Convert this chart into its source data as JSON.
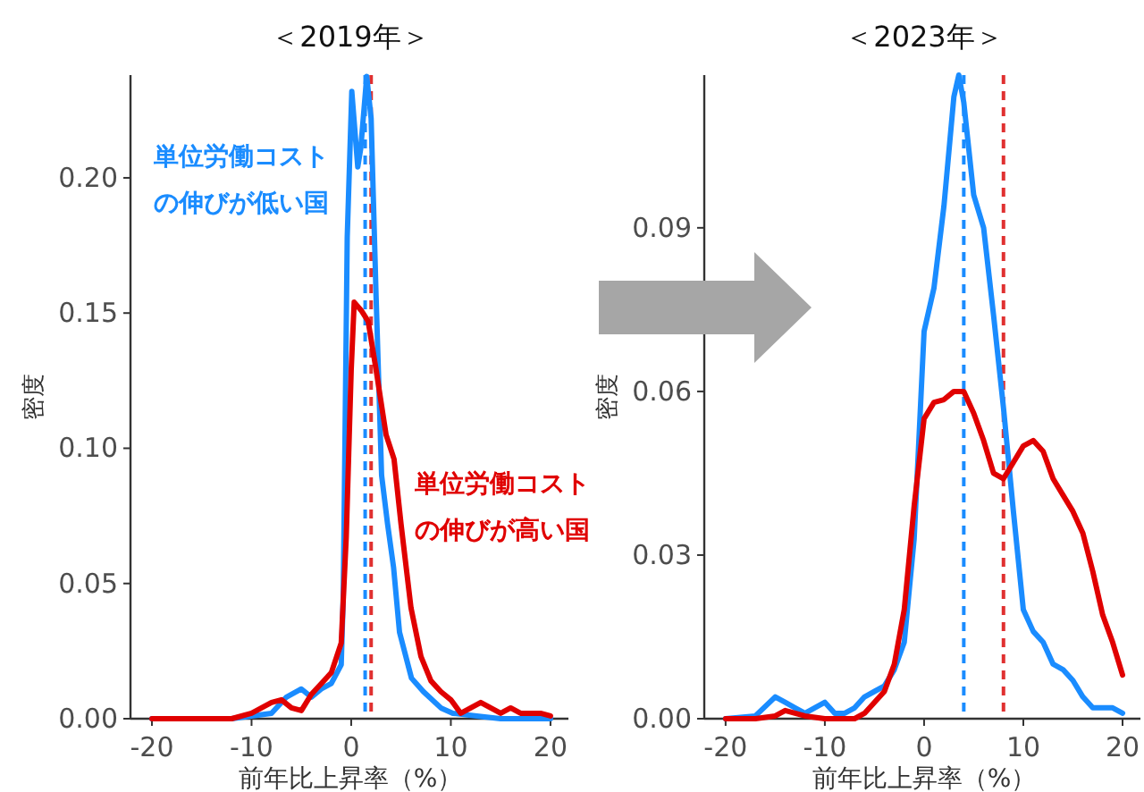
{
  "chart_data": [
    {
      "type": "line",
      "title": "＜2019年＞",
      "xlabel": "前年比上昇率（%）",
      "ylabel": "密度",
      "xlim": [
        -22.15,
        21.8
      ],
      "ylim": [
        0,
        0.238
      ],
      "xticks": [
        -20,
        -10,
        0,
        10,
        20
      ],
      "yticks": [
        {
          "value": 0,
          "label": "0.00"
        },
        {
          "value": 0.05,
          "label": "0.05"
        },
        {
          "value": 0.1,
          "label": "0.10"
        },
        {
          "value": 0.15,
          "label": "0.15"
        },
        {
          "value": 0.2,
          "label": "0.20"
        }
      ],
      "grid": false,
      "series": [
        {
          "name": "単位労働コストの伸びが低い国",
          "color": "#1a8cff",
          "x": [
            -20,
            -15,
            -12,
            -10,
            -8,
            -6.5,
            -5,
            -4,
            -3,
            -2,
            -1,
            -0.8,
            -0.4,
            0.06,
            0.66,
            0.96,
            1.56,
            2.0,
            2.5,
            3.05,
            3.65,
            4.25,
            4.85,
            6.05,
            7.25,
            9.0,
            10.2,
            12.6,
            15,
            20
          ],
          "values": [
            0,
            0,
            0,
            0.001,
            0.002,
            0.008,
            0.011,
            0.008,
            0.011,
            0.013,
            0.02,
            0.045,
            0.178,
            0.232,
            0.204,
            0.211,
            0.2375,
            0.222,
            0.156,
            0.09,
            0.072,
            0.056,
            0.032,
            0.015,
            0.01,
            0.004,
            0.002,
            0.001,
            0,
            0
          ]
        },
        {
          "name": "単位労働コストの伸びが高い国",
          "color": "#e00000",
          "x": [
            -20,
            -15,
            -12,
            -10,
            -9,
            -8,
            -7,
            -6,
            -5,
            -4,
            -3,
            -2,
            -1,
            -0.5,
            0,
            0.3,
            1,
            1.7,
            2.5,
            3.5,
            4.3,
            5,
            6,
            7,
            8,
            9,
            10,
            11,
            12,
            13,
            14,
            15,
            16,
            17,
            18,
            19,
            20
          ],
          "values": [
            0,
            0,
            0,
            0.002,
            0.004,
            0.006,
            0.007,
            0.004,
            0.003,
            0.009,
            0.013,
            0.017,
            0.028,
            0.067,
            0.129,
            0.154,
            0.151,
            0.147,
            0.129,
            0.105,
            0.096,
            0.072,
            0.041,
            0.023,
            0.014,
            0.01,
            0.007,
            0.002,
            0.004,
            0.006,
            0.004,
            0.002,
            0.004,
            0.002,
            0.002,
            0.002,
            0.001
          ]
        }
      ],
      "ref_lines": [
        {
          "axis": "x",
          "value": 1.4,
          "color": "#1a8cff",
          "line_style": "dashed"
        },
        {
          "axis": "x",
          "value": 2.0,
          "color": "#e03030",
          "line_style": "dashed"
        }
      ]
    },
    {
      "type": "line",
      "title": "＜2023年＞",
      "xlabel": "前年比上昇率（%）",
      "ylabel": "密度",
      "xlim": [
        -22.15,
        21.8
      ],
      "ylim": [
        0,
        0.118
      ],
      "xticks": [
        -20,
        -10,
        0,
        10,
        20
      ],
      "yticks": [
        {
          "value": 0,
          "label": "0.00"
        },
        {
          "value": 0.03,
          "label": "0.03"
        },
        {
          "value": 0.06,
          "label": "0.06"
        },
        {
          "value": 0.09,
          "label": "0.09"
        }
      ],
      "grid": false,
      "series": [
        {
          "color": "#1a8cff",
          "x": [
            -20,
            -17,
            -15,
            -14,
            -13,
            -12,
            -10,
            -9,
            -8,
            -7,
            -6,
            -5,
            -4,
            -3,
            -2,
            -1,
            0,
            1,
            2,
            3,
            3.5,
            4,
            5,
            6,
            7,
            8,
            9,
            10,
            11,
            12,
            13,
            14,
            15,
            16,
            17,
            18,
            19,
            20
          ],
          "values": [
            0,
            0.0005,
            0.004,
            0.003,
            0.002,
            0.001,
            0.003,
            0.001,
            0.001,
            0.002,
            0.004,
            0.005,
            0.006,
            0.009,
            0.014,
            0.033,
            0.071,
            0.079,
            0.094,
            0.114,
            0.118,
            0.113,
            0.096,
            0.09,
            0.074,
            0.057,
            0.038,
            0.02,
            0.016,
            0.014,
            0.01,
            0.009,
            0.007,
            0.004,
            0.002,
            0.002,
            0.002,
            0.001
          ]
        },
        {
          "color": "#e00000",
          "x": [
            -20,
            -17,
            -15,
            -14,
            -13,
            -12,
            -10,
            -7,
            -6,
            -5,
            -4,
            -3,
            -2,
            -1,
            0,
            1,
            2,
            3,
            4,
            5,
            6,
            7,
            8,
            9,
            10,
            11,
            12,
            13,
            14,
            15,
            16,
            17,
            18,
            19,
            20
          ],
          "values": [
            0,
            0,
            0.0005,
            0.0015,
            0.001,
            0.0005,
            0,
            0,
            0.001,
            0.003,
            0.005,
            0.01,
            0.02,
            0.039,
            0.055,
            0.058,
            0.0585,
            0.06,
            0.06,
            0.056,
            0.051,
            0.045,
            0.044,
            0.047,
            0.05,
            0.051,
            0.049,
            0.044,
            0.041,
            0.038,
            0.034,
            0.027,
            0.019,
            0.014,
            0.008
          ]
        }
      ],
      "ref_lines": [
        {
          "axis": "x",
          "value": 4.0,
          "color": "#1a8cff",
          "line_style": "dashed"
        },
        {
          "axis": "x",
          "value": 8.0,
          "color": "#e03030",
          "line_style": "dashed"
        }
      ]
    }
  ]
}
